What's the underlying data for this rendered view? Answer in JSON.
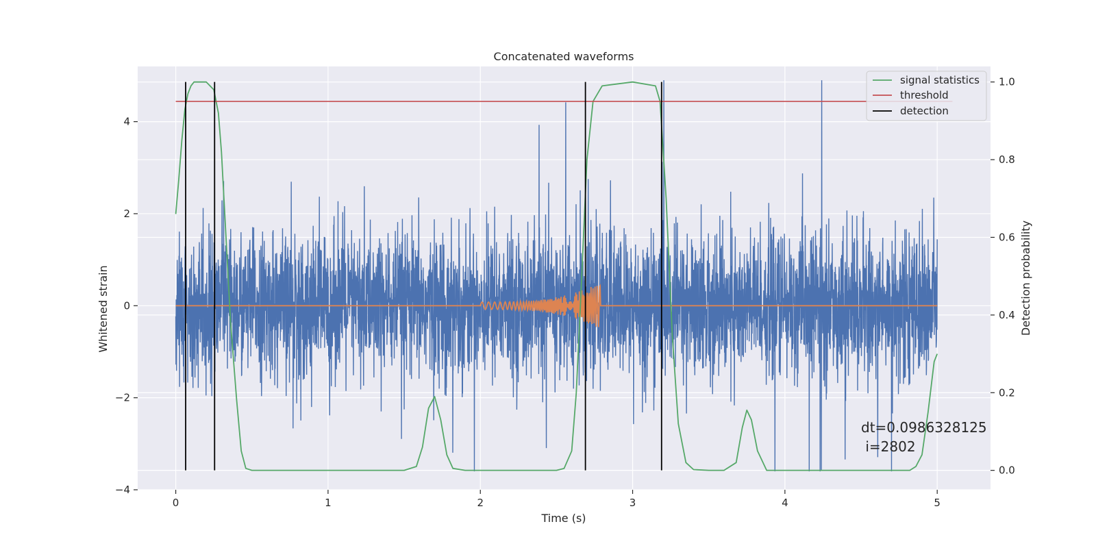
{
  "chart_data": {
    "type": "line",
    "title": "Concatenated waveforms",
    "xlabel": "Time (s)",
    "ylabel": "Whitened strain",
    "y2label": "Detection probability",
    "xlim": [
      -0.25,
      5.35
    ],
    "ylim": [
      -4.0,
      5.2
    ],
    "y2lim": [
      -0.05,
      1.04
    ],
    "x_ticks": [
      0,
      1,
      2,
      3,
      4,
      5
    ],
    "y_ticks": [
      -4,
      -2,
      0,
      2,
      4
    ],
    "y2_ticks": [
      0.0,
      0.2,
      0.4,
      0.6,
      0.8,
      1.0
    ],
    "x_tick_labels": [
      "0",
      "1",
      "2",
      "3",
      "4",
      "5"
    ],
    "y_tick_labels": [
      "−4",
      "−2",
      "0",
      "2",
      "4"
    ],
    "y2_tick_labels": [
      "0.0",
      "0.2",
      "0.4",
      "0.6",
      "0.8",
      "1.0"
    ],
    "grid": true,
    "legend_position": "top-right",
    "colors": {
      "noise": "#4c72b0",
      "injection": "#dd8452",
      "statistics": "#55a868",
      "threshold": "#c44e52",
      "detection": "#000000",
      "background": "#eaeaf2",
      "grid": "#ffffff"
    },
    "series": [
      {
        "name": "",
        "role": "noise",
        "axis": "left",
        "x_range": [
          0,
          5
        ],
        "amplitude_std": 0.75,
        "max": 4.9,
        "min": -3.6
      },
      {
        "name": "",
        "role": "injection",
        "axis": "left",
        "chirp_start": 2.0,
        "chirp_end": 2.79,
        "peak_amplitude": 0.5
      },
      {
        "name": "signal statistics",
        "role": "statistics",
        "axis": "right",
        "x": [
          0.0,
          0.02,
          0.04,
          0.06,
          0.08,
          0.1,
          0.12,
          0.15,
          0.2,
          0.25,
          0.28,
          0.3,
          0.33,
          0.36,
          0.4,
          0.43,
          0.46,
          0.5,
          1.5,
          1.58,
          1.62,
          1.66,
          1.7,
          1.74,
          1.78,
          1.82,
          1.9,
          2.5,
          2.55,
          2.6,
          2.63,
          2.66,
          2.7,
          2.74,
          2.8,
          3.0,
          3.15,
          3.18,
          3.22,
          3.26,
          3.3,
          3.35,
          3.4,
          3.5,
          3.6,
          3.68,
          3.72,
          3.75,
          3.78,
          3.82,
          3.88,
          4.2,
          4.82,
          4.86,
          4.9,
          4.94,
          4.98,
          5.0
        ],
        "y": [
          0.66,
          0.75,
          0.85,
          0.93,
          0.97,
          0.99,
          1.0,
          1.0,
          1.0,
          0.98,
          0.92,
          0.82,
          0.6,
          0.38,
          0.18,
          0.05,
          0.005,
          0.0,
          0.0,
          0.01,
          0.06,
          0.16,
          0.19,
          0.13,
          0.04,
          0.005,
          0.0,
          0.0,
          0.005,
          0.05,
          0.2,
          0.45,
          0.8,
          0.95,
          0.99,
          1.0,
          0.99,
          0.95,
          0.7,
          0.35,
          0.12,
          0.02,
          0.002,
          0.0,
          0.0,
          0.02,
          0.11,
          0.155,
          0.13,
          0.05,
          0.0,
          0.0,
          0.0,
          0.01,
          0.04,
          0.15,
          0.28,
          0.3
        ]
      },
      {
        "name": "threshold",
        "role": "threshold",
        "axis": "right",
        "x": [
          0,
          5.1
        ],
        "y": [
          0.95,
          0.95
        ]
      },
      {
        "name": "detection",
        "role": "detection",
        "axis": "right",
        "x": [
          0.065,
          0.255,
          2.69,
          3.19
        ],
        "y_range": [
          0.0,
          1.0
        ]
      }
    ],
    "annotation": {
      "x": 4.5,
      "y": 0.1,
      "lines": [
        "dt=0.0986328125",
        " i=2802"
      ]
    }
  }
}
